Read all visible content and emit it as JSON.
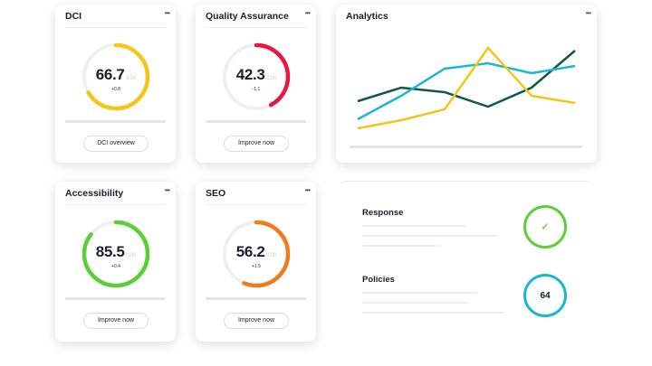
{
  "gauges": [
    {
      "title": "DCI",
      "value": "66.7",
      "max": "/100",
      "delta": "+0.8",
      "button": "DCI overview",
      "fraction": 0.667,
      "color": "#f5c518"
    },
    {
      "title": "Quality Assurance",
      "value": "42.3",
      "max": "/100",
      "delta": "-1.1",
      "button": "Improve now",
      "fraction": 0.423,
      "color": "#e8173f"
    },
    {
      "title": "Accessibility",
      "value": "85.5",
      "max": "/100",
      "delta": "+0.4",
      "button": "Improve now",
      "fraction": 0.855,
      "color": "#5ccf37"
    },
    {
      "title": "SEO",
      "value": "56.2",
      "max": "/100",
      "delta": "+1.5",
      "button": "Improve now",
      "fraction": 0.562,
      "color": "#f07a1c"
    }
  ],
  "more_icon": "ellipsis-icon",
  "analytics": {
    "title": "Analytics"
  },
  "chart_data": {
    "type": "line",
    "x": [
      1,
      2,
      3,
      4,
      5,
      6
    ],
    "grid": false,
    "series": [
      {
        "color": "#0e5a4e",
        "values": [
          48,
          63,
          58,
          42,
          63,
          104
        ]
      },
      {
        "color": "#1ab6d6",
        "values": [
          28,
          54,
          84,
          90,
          79,
          87
        ]
      },
      {
        "color": "#f5c518",
        "values": [
          18,
          27,
          39,
          107,
          54,
          46
        ]
      }
    ]
  },
  "summary": {
    "response": {
      "label": "Response",
      "icon": "checkmark-icon",
      "color": "#5ccf37"
    },
    "policies": {
      "label": "Policies",
      "value": "64",
      "color": "#1ab6d6"
    }
  }
}
